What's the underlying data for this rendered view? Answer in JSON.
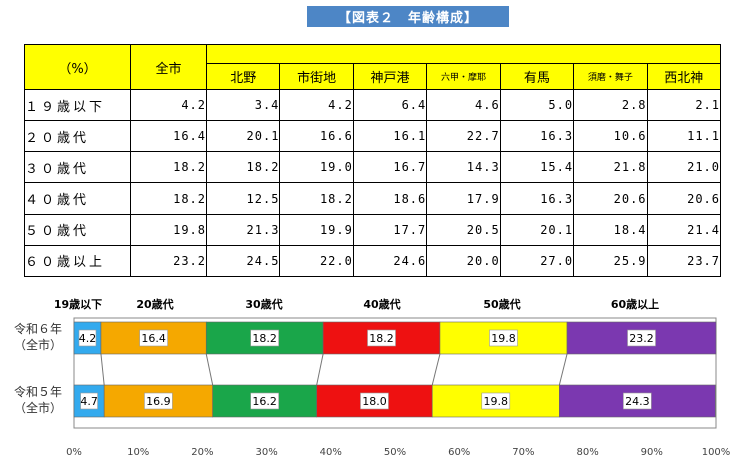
{
  "title": "【図表２　年齢構成】",
  "table": {
    "corner_label": "（%）",
    "all_label": "全市",
    "wards": [
      "北野",
      "市街地",
      "神戸港",
      "六甲・摩耶",
      "有馬",
      "須磨・舞子",
      "西北神"
    ],
    "rows": [
      {
        "label": "１９歳以下",
        "values": [
          "4.2",
          "3.4",
          "4.2",
          "6.4",
          "4.6",
          "5.0",
          "2.8",
          "2.1"
        ]
      },
      {
        "label": "２０歳代",
        "values": [
          "16.4",
          "20.1",
          "16.6",
          "16.1",
          "22.7",
          "16.3",
          "10.6",
          "11.1"
        ]
      },
      {
        "label": "３０歳代",
        "values": [
          "18.2",
          "18.2",
          "19.0",
          "16.7",
          "14.3",
          "15.4",
          "21.8",
          "21.0"
        ]
      },
      {
        "label": "４０歳代",
        "values": [
          "18.2",
          "12.5",
          "18.2",
          "18.6",
          "17.9",
          "16.3",
          "20.6",
          "20.6"
        ]
      },
      {
        "label": "５０歳代",
        "values": [
          "19.8",
          "21.3",
          "19.9",
          "17.7",
          "20.5",
          "20.1",
          "18.4",
          "21.4"
        ]
      },
      {
        "label": "６０歳以上",
        "values": [
          "23.2",
          "24.5",
          "22.0",
          "24.6",
          "20.0",
          "27.0",
          "25.9",
          "23.7"
        ]
      }
    ]
  },
  "chart_data": {
    "type": "bar",
    "orientation": "horizontal",
    "stacked": true,
    "percent": true,
    "categories": [
      "令和６年（全市）",
      "令和５年（全市）"
    ],
    "category_lines": [
      [
        "令和６年",
        "（全市）"
      ],
      [
        "令和５年",
        "（全市）"
      ]
    ],
    "series": [
      {
        "name": "19歳以下",
        "values": [
          4.2,
          4.7
        ],
        "color": "#33aaee"
      },
      {
        "name": "20歳代",
        "values": [
          16.4,
          16.9
        ],
        "color": "#f5a800"
      },
      {
        "name": "30歳代",
        "values": [
          18.2,
          16.2
        ],
        "color": "#1aa64a"
      },
      {
        "name": "40歳代",
        "values": [
          18.2,
          18.0
        ],
        "color": "#ee1111"
      },
      {
        "name": "50歳代",
        "values": [
          19.8,
          19.8
        ],
        "color": "#ffff00"
      },
      {
        "name": "60歳以上",
        "values": [
          23.2,
          24.3
        ],
        "color": "#7b38b0"
      }
    ],
    "data_labels": [
      [
        "4.2",
        "16.4",
        "18.2",
        "18.2",
        "19.8",
        "23.2"
      ],
      [
        "4.7",
        "16.9",
        "16.2",
        "18.0",
        "19.8",
        "24.3"
      ]
    ],
    "xlim": [
      0,
      100
    ],
    "x_ticks": [
      "0%",
      "10%",
      "20%",
      "30%",
      "40%",
      "50%",
      "60%",
      "70%",
      "80%",
      "90%",
      "100%"
    ],
    "legend_position": "top",
    "series_lines": true
  }
}
